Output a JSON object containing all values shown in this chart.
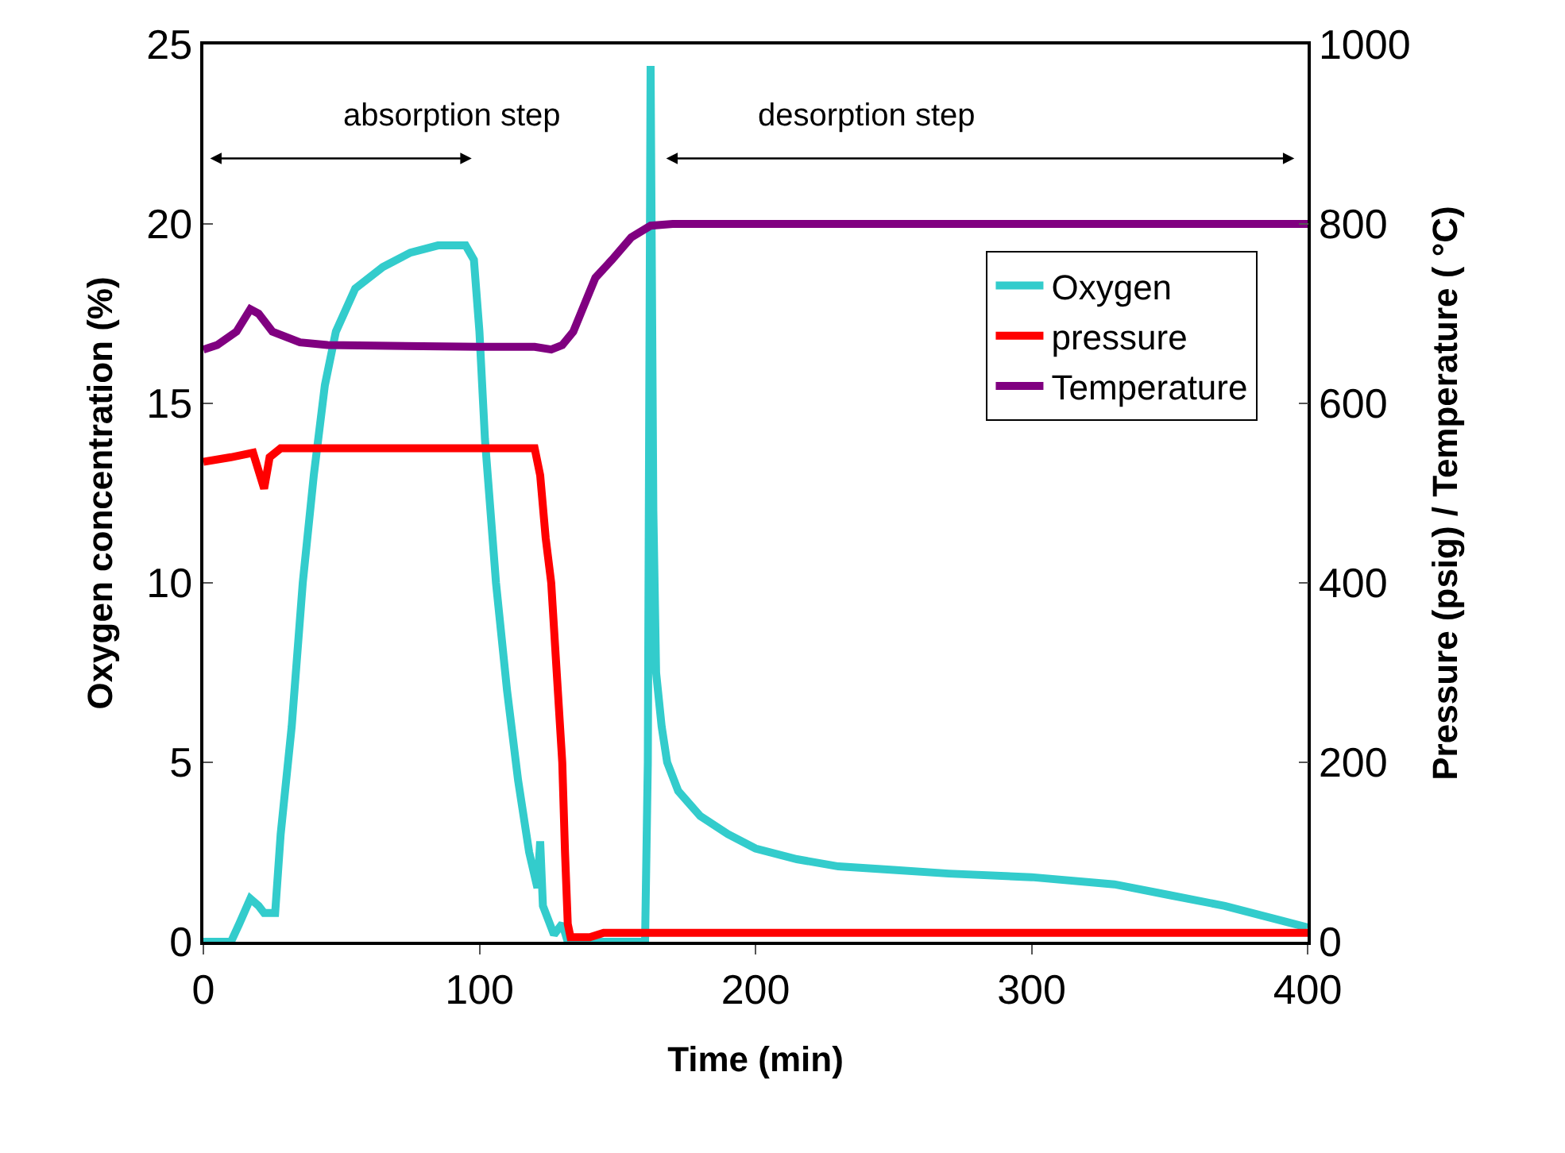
{
  "chart_data": {
    "type": "line",
    "xlabel": "Time (min)",
    "ylabel": "Oxygen concentration (%)",
    "y2label": "Pressure (psig) / Temperature ( °C)",
    "xlim": [
      0,
      400
    ],
    "xticks": [
      0,
      100,
      200,
      300,
      400
    ],
    "ylim": [
      0,
      25
    ],
    "yticks": [
      0,
      5,
      10,
      15,
      20,
      25
    ],
    "y2lim": [
      0,
      1000
    ],
    "y2ticks": [
      0,
      200,
      400,
      600,
      800,
      1000
    ],
    "annotations": [
      "absorption step",
      "desorption step"
    ],
    "legend": "top right",
    "marker": "none",
    "line_style": "solid",
    "series": [
      {
        "name": "Oxygen",
        "color": "#33cccc",
        "x": [
          0,
          10,
          13,
          17,
          20,
          22,
          26,
          28,
          32,
          36,
          40,
          44,
          48,
          55,
          65,
          75,
          85,
          95,
          98,
          100,
          102,
          106,
          110,
          114,
          118,
          121,
          122,
          123,
          127,
          130,
          132,
          160,
          161,
          162,
          163,
          164,
          166,
          168,
          172,
          180,
          190,
          200,
          215,
          230,
          250,
          270,
          300,
          330,
          350,
          370,
          390,
          400
        ],
        "values": [
          0,
          0,
          0.5,
          1.2,
          1.0,
          0.8,
          0.8,
          3,
          6,
          10,
          13,
          15.5,
          17,
          18.2,
          18.8,
          19.2,
          19.4,
          19.4,
          19,
          17,
          14,
          10,
          7,
          4.5,
          2.5,
          1.5,
          2.8,
          1,
          0.2,
          0.5,
          0,
          0,
          5,
          24.4,
          12,
          7.5,
          6,
          5,
          4.2,
          3.5,
          3.0,
          2.6,
          2.3,
          2.1,
          2.0,
          1.9,
          1.8,
          1.6,
          1.3,
          1.0,
          0.6,
          0.4
        ]
      },
      {
        "name": "pressure",
        "color": "#ff0000",
        "axis": "y2",
        "x": [
          0,
          10,
          18,
          20,
          22,
          24,
          28,
          120,
          122,
          124,
          126,
          128,
          130,
          131,
          132,
          133,
          140,
          145,
          400
        ],
        "values": [
          535,
          540,
          545,
          525,
          505,
          540,
          550,
          550,
          520,
          450,
          400,
          300,
          200,
          100,
          20,
          5,
          5,
          10,
          10
        ]
      },
      {
        "name": "Temperature",
        "color": "#800080",
        "axis": "y2",
        "x": [
          0,
          5,
          12,
          17,
          20,
          25,
          35,
          45,
          100,
          120,
          126,
          130,
          134,
          138,
          142,
          148,
          155,
          162,
          170,
          400
        ],
        "values": [
          660,
          665,
          680,
          705,
          700,
          680,
          668,
          665,
          663,
          663,
          660,
          665,
          680,
          710,
          740,
          760,
          785,
          798,
          800,
          800
        ]
      }
    ]
  }
}
